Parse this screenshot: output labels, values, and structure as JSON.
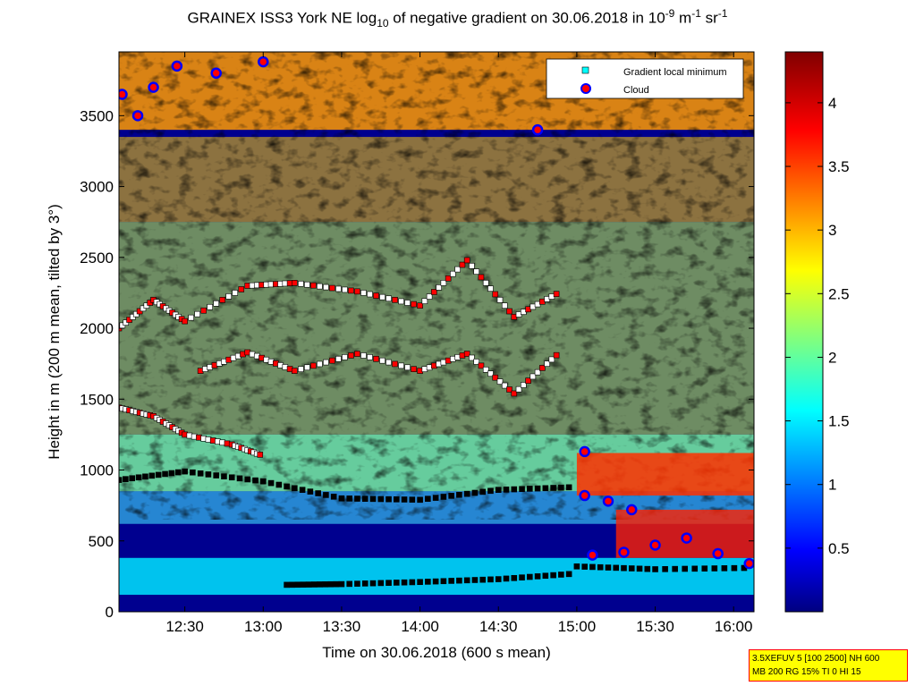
{
  "title": {
    "prefix": "GRAINEX ISS3 York NE log",
    "sub": "10",
    "middle": " of negative gradient on 30.06.2018 in 10",
    "sup1": "-9",
    "unit1": " m",
    "sup2": "-1",
    "unit2": " sr",
    "sup3": "-1"
  },
  "info_box": {
    "line1": "3.5XEFUV 5 [100 2500] NH 600",
    "line2": "MB 200 RG 15% TI 0 HI 15"
  },
  "chart_data": {
    "type": "heatmap",
    "xlabel": "Time on 30.06.2018 (600 s mean)",
    "ylabel": "Height in m (200 m mean, tilted by 3°)",
    "x_ticks": [
      "12:30",
      "13:00",
      "13:30",
      "14:00",
      "14:30",
      "15:00",
      "15:30",
      "16:00"
    ],
    "x_tick_hours": [
      12.5,
      13.0,
      13.5,
      14.0,
      14.5,
      15.0,
      15.5,
      16.0
    ],
    "xlim_hours": [
      12.08,
      16.13
    ],
    "y_ticks": [
      0,
      500,
      1000,
      1500,
      2000,
      2500,
      3000,
      3500
    ],
    "ylim": [
      0,
      3950
    ],
    "colorbar": {
      "ticks": [
        0.5,
        1,
        1.5,
        2,
        2.5,
        3,
        3.5,
        4
      ],
      "tick_labels": [
        "0.5",
        "1",
        "1.5",
        "2",
        "2.5",
        "3",
        "3.5",
        "4"
      ],
      "range": [
        0,
        4.4
      ]
    },
    "legend": {
      "placement": "top-right",
      "entries": [
        {
          "label": "Gradient local minimum",
          "marker": "square",
          "color": "#00ffff"
        },
        {
          "label": "Cloud",
          "marker": "circle",
          "color": "#ff0000"
        }
      ]
    },
    "gradient_minimum_layers": [
      {
        "x": [
          12.08,
          12.5,
          13.0,
          13.5,
          14.0,
          14.5,
          15.0
        ],
        "y": [
          930,
          990,
          920,
          800,
          790,
          860,
          880
        ]
      },
      {
        "x": [
          13.15,
          13.5,
          14.0,
          14.5,
          15.0
        ],
        "y": [
          190,
          195,
          210,
          230,
          270
        ]
      },
      {
        "x": [
          15.0,
          15.5,
          16.13
        ],
        "y": [
          320,
          300,
          310
        ]
      },
      {
        "x": [
          12.08,
          12.3,
          12.5,
          12.8,
          13.0
        ],
        "y": [
          1440,
          1380,
          1250,
          1180,
          1100
        ]
      },
      {
        "x": [
          12.08,
          12.3,
          12.5,
          12.9,
          13.2,
          13.6,
          14.0,
          14.3,
          14.6,
          14.9
        ],
        "y": [
          2000,
          2200,
          2050,
          2300,
          2320,
          2260,
          2160,
          2480,
          2080,
          2260
        ]
      },
      {
        "x": [
          12.6,
          12.9,
          13.2,
          13.6,
          14.0,
          14.3,
          14.6,
          14.9
        ],
        "y": [
          1700,
          1830,
          1700,
          1820,
          1700,
          1820,
          1540,
          1840
        ]
      }
    ],
    "cloud_points": [
      {
        "x": 12.1,
        "y": 3650
      },
      {
        "x": 12.2,
        "y": 3500
      },
      {
        "x": 12.3,
        "y": 3700
      },
      {
        "x": 12.45,
        "y": 3850
      },
      {
        "x": 12.7,
        "y": 3800
      },
      {
        "x": 13.0,
        "y": 3880
      },
      {
        "x": 14.75,
        "y": 3400
      },
      {
        "x": 15.05,
        "y": 1130
      },
      {
        "x": 15.05,
        "y": 820
      },
      {
        "x": 15.2,
        "y": 780
      },
      {
        "x": 15.35,
        "y": 720
      },
      {
        "x": 15.1,
        "y": 400
      },
      {
        "x": 15.3,
        "y": 420
      },
      {
        "x": 15.5,
        "y": 470
      },
      {
        "x": 15.7,
        "y": 520
      },
      {
        "x": 15.9,
        "y": 410
      },
      {
        "x": 16.1,
        "y": 340
      }
    ]
  }
}
